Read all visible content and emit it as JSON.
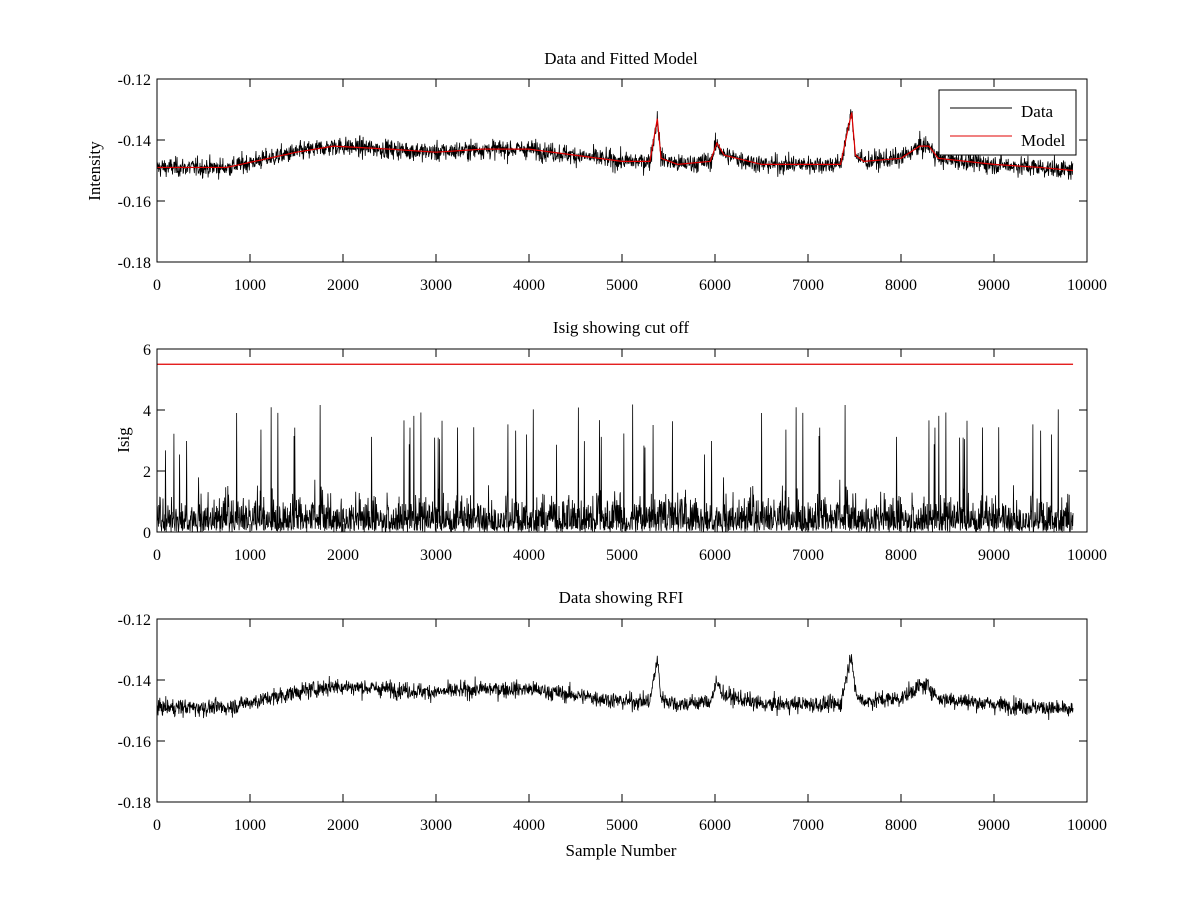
{
  "figure": {
    "xlabel_bottom": "Sample Number"
  },
  "colors": {
    "data": "#000000",
    "model": "#e00000",
    "axis": "#000000",
    "background": "#ffffff"
  },
  "chart_data": [
    {
      "type": "line",
      "title": "Data and Fitted Model",
      "xlabel": "",
      "ylabel": "Intensity",
      "xlim": [
        0,
        10000
      ],
      "ylim": [
        -0.18,
        -0.12
      ],
      "xticks": [
        0,
        1000,
        2000,
        3000,
        4000,
        5000,
        6000,
        7000,
        8000,
        9000,
        10000
      ],
      "xtick_labels": [
        "0",
        "1000",
        "2000",
        "3000",
        "4000",
        "5000",
        "6000",
        "7000",
        "8000",
        "9000",
        "10000"
      ],
      "yticks": [
        -0.12,
        -0.14,
        -0.16,
        -0.18
      ],
      "ytick_labels": [
        "-0.12",
        "-0.14",
        "-0.16",
        "-0.18"
      ],
      "grid": false,
      "legend": {
        "placement": "top-right",
        "entries": [
          "Data",
          "Model"
        ]
      },
      "series": [
        {
          "name": "Data",
          "color": "#000000",
          "style": "noisy",
          "x": [
            0,
            750,
            1500,
            1900,
            2500,
            3000,
            3500,
            4000,
            4500,
            5000,
            5300,
            5380,
            5420,
            5600,
            5950,
            6020,
            6100,
            6500,
            7000,
            7350,
            7440,
            7470,
            7510,
            7600,
            8000,
            8200,
            8300,
            8400,
            9000,
            9500,
            9850
          ],
          "center": [
            -0.149,
            -0.149,
            -0.144,
            -0.142,
            -0.143,
            -0.144,
            -0.143,
            -0.143,
            -0.145,
            -0.147,
            -0.147,
            -0.133,
            -0.146,
            -0.148,
            -0.147,
            -0.141,
            -0.145,
            -0.148,
            -0.148,
            -0.148,
            -0.135,
            -0.131,
            -0.145,
            -0.147,
            -0.146,
            -0.142,
            -0.142,
            -0.146,
            -0.148,
            -0.149,
            -0.15
          ],
          "noise_amplitude": 0.004,
          "x_end": 9850
        },
        {
          "name": "Model",
          "color": "#e00000",
          "style": "smooth",
          "x": [
            0,
            750,
            1500,
            1900,
            2500,
            3000,
            3500,
            4000,
            4500,
            5000,
            5300,
            5380,
            5420,
            5600,
            5950,
            6020,
            6100,
            6500,
            7000,
            7350,
            7440,
            7470,
            7510,
            7600,
            8000,
            8200,
            8300,
            8400,
            9000,
            9500,
            9850
          ],
          "y": [
            -0.149,
            -0.149,
            -0.144,
            -0.142,
            -0.143,
            -0.144,
            -0.143,
            -0.143,
            -0.145,
            -0.147,
            -0.147,
            -0.133,
            -0.146,
            -0.148,
            -0.147,
            -0.141,
            -0.145,
            -0.148,
            -0.148,
            -0.148,
            -0.135,
            -0.131,
            -0.145,
            -0.147,
            -0.146,
            -0.142,
            -0.142,
            -0.146,
            -0.148,
            -0.149,
            -0.15
          ]
        }
      ]
    },
    {
      "type": "line",
      "title": "Isig showing cut off",
      "xlabel": "",
      "ylabel": "Isig",
      "xlim": [
        0,
        10000
      ],
      "ylim": [
        0,
        6
      ],
      "xticks": [
        0,
        1000,
        2000,
        3000,
        4000,
        5000,
        6000,
        7000,
        8000,
        9000,
        10000
      ],
      "xtick_labels": [
        "0",
        "1000",
        "2000",
        "3000",
        "4000",
        "5000",
        "6000",
        "7000",
        "8000",
        "9000",
        "10000"
      ],
      "yticks": [
        0,
        2,
        4,
        6
      ],
      "ytick_labels": [
        "0",
        "2",
        "4",
        "6"
      ],
      "grid": false,
      "series": [
        {
          "color": "#000000",
          "style": "abs-noise",
          "x": [
            0,
            9850
          ],
          "typical": 0.8,
          "max": 4.2,
          "x_end": 9850
        },
        {
          "color": "#e00000",
          "style": "smooth",
          "x": [
            0,
            9850
          ],
          "y": [
            5.5,
            5.5
          ]
        }
      ]
    },
    {
      "type": "line",
      "title": "Data showing RFI",
      "xlabel": "Sample Number",
      "ylabel": "",
      "xlim": [
        0,
        10000
      ],
      "ylim": [
        -0.18,
        -0.12
      ],
      "xticks": [
        0,
        1000,
        2000,
        3000,
        4000,
        5000,
        6000,
        7000,
        8000,
        9000,
        10000
      ],
      "xtick_labels": [
        "0",
        "1000",
        "2000",
        "3000",
        "4000",
        "5000",
        "6000",
        "7000",
        "8000",
        "9000",
        "10000"
      ],
      "yticks": [
        -0.12,
        -0.14,
        -0.16,
        -0.18
      ],
      "ytick_labels": [
        "-0.12",
        "-0.14",
        "-0.16",
        "-0.18"
      ],
      "grid": false,
      "series": [
        {
          "color": "#000000",
          "style": "noisy",
          "x": [
            0,
            750,
            1500,
            1900,
            2500,
            3000,
            3500,
            4000,
            4500,
            5000,
            5300,
            5380,
            5420,
            5600,
            5950,
            6020,
            6100,
            6500,
            7000,
            7350,
            7440,
            7470,
            7510,
            7600,
            8000,
            8200,
            8300,
            8400,
            9000,
            9500,
            9850
          ],
          "center": [
            -0.149,
            -0.149,
            -0.144,
            -0.142,
            -0.143,
            -0.144,
            -0.143,
            -0.143,
            -0.145,
            -0.147,
            -0.147,
            -0.133,
            -0.146,
            -0.148,
            -0.147,
            -0.141,
            -0.145,
            -0.148,
            -0.148,
            -0.148,
            -0.135,
            -0.131,
            -0.145,
            -0.147,
            -0.146,
            -0.142,
            -0.142,
            -0.146,
            -0.148,
            -0.149,
            -0.15
          ],
          "noise_amplitude": 0.0035,
          "x_end": 9850
        }
      ]
    }
  ]
}
